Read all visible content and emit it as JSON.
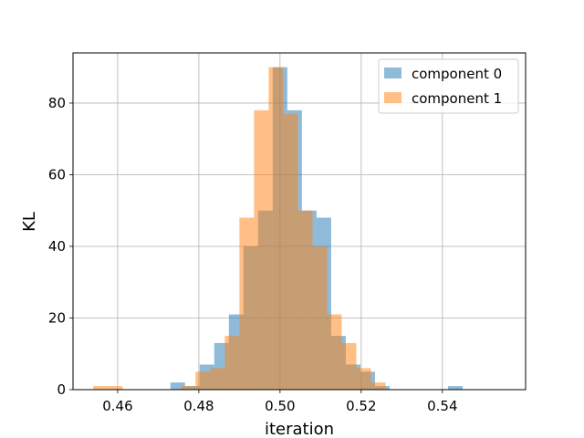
{
  "chart_data": {
    "type": "histogram",
    "xlabel": "iteration",
    "ylabel": "KL",
    "xlim": [
      0.449,
      0.5605
    ],
    "ylim": [
      0,
      94
    ],
    "x_ticks": [
      0.46,
      0.48,
      0.5,
      0.52,
      0.54
    ],
    "x_tick_labels": [
      "0.46",
      "0.48",
      "0.50",
      "0.52",
      "0.54"
    ],
    "y_ticks": [
      0,
      20,
      40,
      60,
      80
    ],
    "y_tick_labels": [
      "0",
      "20",
      "40",
      "60",
      "80"
    ],
    "grid": true,
    "legend_position": "top-right",
    "series": [
      {
        "name": "component 0",
        "color": "#1f77b4",
        "alpha": 0.5,
        "bins": [
          {
            "x0": 0.473,
            "x1": 0.4766,
            "value": 2
          },
          {
            "x0": 0.4766,
            "x1": 0.4802,
            "value": 1
          },
          {
            "x0": 0.4802,
            "x1": 0.4838,
            "value": 7
          },
          {
            "x0": 0.4838,
            "x1": 0.4874,
            "value": 13
          },
          {
            "x0": 0.4874,
            "x1": 0.491,
            "value": 21
          },
          {
            "x0": 0.491,
            "x1": 0.4946,
            "value": 40
          },
          {
            "x0": 0.4946,
            "x1": 0.4982,
            "value": 50
          },
          {
            "x0": 0.4982,
            "x1": 0.5018,
            "value": 90
          },
          {
            "x0": 0.5018,
            "x1": 0.5054,
            "value": 78
          },
          {
            "x0": 0.5054,
            "x1": 0.509,
            "value": 50
          },
          {
            "x0": 0.509,
            "x1": 0.5126,
            "value": 48
          },
          {
            "x0": 0.5126,
            "x1": 0.5162,
            "value": 15
          },
          {
            "x0": 0.5162,
            "x1": 0.5198,
            "value": 7
          },
          {
            "x0": 0.5198,
            "x1": 0.5234,
            "value": 5
          },
          {
            "x0": 0.5234,
            "x1": 0.527,
            "value": 1
          },
          {
            "x0": 0.527,
            "x1": 0.5306,
            "value": 0
          },
          {
            "x0": 0.5306,
            "x1": 0.5342,
            "value": 0
          },
          {
            "x0": 0.5342,
            "x1": 0.5378,
            "value": 0
          },
          {
            "x0": 0.5378,
            "x1": 0.5414,
            "value": 0
          },
          {
            "x0": 0.5414,
            "x1": 0.545,
            "value": 1
          }
        ]
      },
      {
        "name": "component 1",
        "color": "#ff7f0e",
        "alpha": 0.5,
        "bins": [
          {
            "x0": 0.454,
            "x1": 0.4576,
            "value": 1
          },
          {
            "x0": 0.4576,
            "x1": 0.4612,
            "value": 1
          },
          {
            "x0": 0.4612,
            "x1": 0.4648,
            "value": 0
          },
          {
            "x0": 0.4648,
            "x1": 0.4684,
            "value": 0
          },
          {
            "x0": 0.4684,
            "x1": 0.472,
            "value": 0
          },
          {
            "x0": 0.472,
            "x1": 0.4756,
            "value": 0
          },
          {
            "x0": 0.4756,
            "x1": 0.4792,
            "value": 1
          },
          {
            "x0": 0.4792,
            "x1": 0.4828,
            "value": 5
          },
          {
            "x0": 0.4828,
            "x1": 0.4864,
            "value": 6
          },
          {
            "x0": 0.4864,
            "x1": 0.49,
            "value": 15
          },
          {
            "x0": 0.49,
            "x1": 0.4936,
            "value": 48
          },
          {
            "x0": 0.4936,
            "x1": 0.4972,
            "value": 78
          },
          {
            "x0": 0.4972,
            "x1": 0.5008,
            "value": 90
          },
          {
            "x0": 0.5008,
            "x1": 0.5044,
            "value": 77
          },
          {
            "x0": 0.5044,
            "x1": 0.508,
            "value": 50
          },
          {
            "x0": 0.508,
            "x1": 0.5116,
            "value": 40
          },
          {
            "x0": 0.5116,
            "x1": 0.5152,
            "value": 21
          },
          {
            "x0": 0.5152,
            "x1": 0.5188,
            "value": 13
          },
          {
            "x0": 0.5188,
            "x1": 0.5224,
            "value": 6
          },
          {
            "x0": 0.5224,
            "x1": 0.526,
            "value": 2
          }
        ]
      }
    ]
  }
}
